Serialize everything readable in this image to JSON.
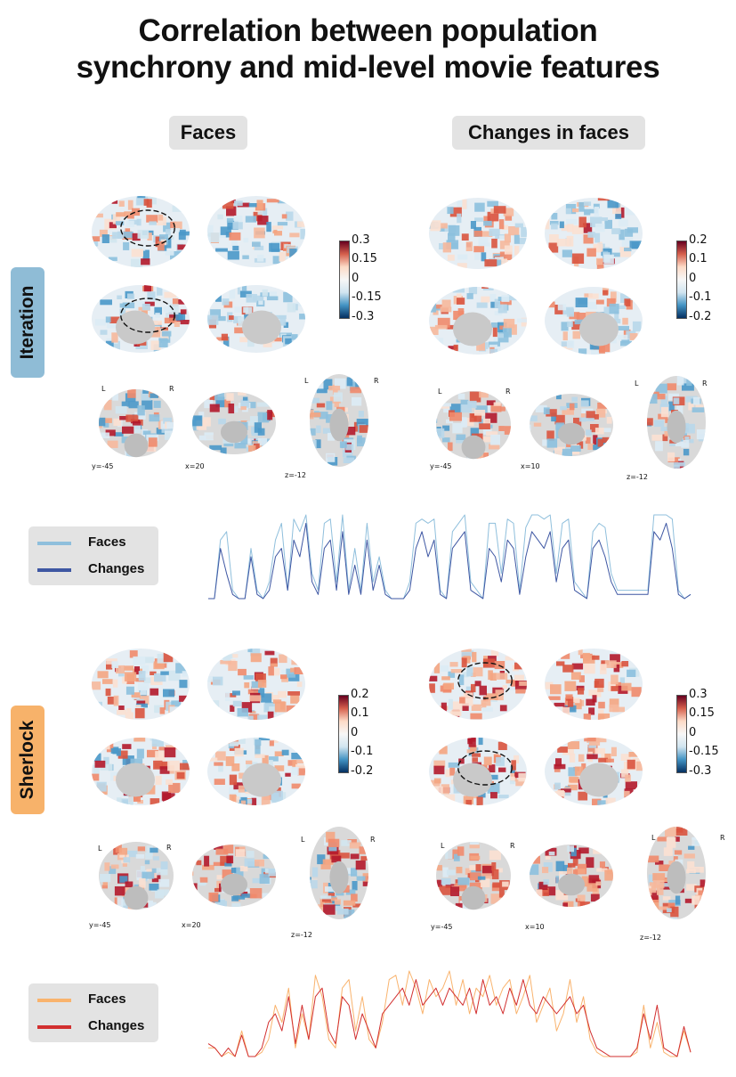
{
  "title": {
    "line1": "Correlation between population",
    "line2": "synchrony and mid-level movie features"
  },
  "columns": {
    "faces": "Faces",
    "changes": "Changes in faces"
  },
  "rows": {
    "iteration": {
      "label": "Iteration",
      "color": "#8fbcd6"
    },
    "sherlock": {
      "label": "Sherlock",
      "color": "#f7b26a"
    }
  },
  "panels": {
    "iteration_faces": {
      "colorbar_ticks": [
        "0.3",
        "0.15",
        "0",
        "-0.15",
        "-0.3"
      ],
      "slices": {
        "coronal": "y=-45",
        "sagittal": "x=20",
        "axial": "z=-12"
      }
    },
    "iteration_changes": {
      "colorbar_ticks": [
        "0.2",
        "0.1",
        "0",
        "-0.1",
        "-0.2"
      ],
      "slices": {
        "coronal": "y=-45",
        "sagittal": "x=10",
        "axial": "z=-12"
      }
    },
    "sherlock_faces": {
      "colorbar_ticks": [
        "0.2",
        "0.1",
        "0",
        "-0.1",
        "-0.2"
      ],
      "slices": {
        "coronal": "y=-45",
        "sagittal": "x=20",
        "axial": "z=-12"
      }
    },
    "sherlock_changes": {
      "colorbar_ticks": [
        "0.3",
        "0.15",
        "0",
        "-0.15",
        "-0.3"
      ],
      "slices": {
        "coronal": "y=-45",
        "sagittal": "x=10",
        "axial": "z=-12"
      }
    }
  },
  "orientation": {
    "left": "L",
    "right": "R"
  },
  "legends": {
    "iteration": [
      {
        "label": "Faces",
        "color": "#8fbfdc"
      },
      {
        "label": "Changes",
        "color": "#3e57a3"
      }
    ],
    "sherlock": [
      {
        "label": "Faces",
        "color": "#f9b36d"
      },
      {
        "label": "Changes",
        "color": "#d22f2f"
      }
    ]
  },
  "chart_data": [
    {
      "type": "line",
      "series": [
        {
          "name": "Faces",
          "values": [
            0,
            0,
            0.7,
            0.8,
            0.1,
            0,
            0,
            0.6,
            0.1,
            0,
            0.2,
            0.7,
            0.9,
            0.1,
            0.95,
            0.8,
            1,
            0.3,
            0.1,
            0.9,
            0.95,
            0.2,
            1,
            0.1,
            0.6,
            0.1,
            0.9,
            0.2,
            0.5,
            0.1,
            0,
            0,
            0,
            0.2,
            0.9,
            0.95,
            0.9,
            0.95,
            0.1,
            0,
            0.8,
            0.9,
            1,
            0.2,
            0.1,
            0,
            0.9,
            0.9,
            0.3,
            0.95,
            0.9,
            0.1,
            0.85,
            1,
            1,
            0.95,
            1,
            0.3,
            0.9,
            0.95,
            0.2,
            0.1,
            0,
            0.8,
            0.9,
            0.85,
            0.3,
            0.1,
            0.1,
            0.1,
            0.1,
            0.1,
            0.1,
            1,
            1,
            1,
            0.95,
            0.1,
            0,
            0.05
          ]
        },
        {
          "name": "Changes",
          "values": [
            0,
            0,
            0.6,
            0.3,
            0.05,
            0,
            0,
            0.5,
            0.05,
            0,
            0.1,
            0.5,
            0.6,
            0.1,
            0.7,
            0.5,
            0.9,
            0.2,
            0.05,
            0.6,
            0.7,
            0.1,
            0.8,
            0.05,
            0.4,
            0.05,
            0.7,
            0.1,
            0.4,
            0.05,
            0,
            0,
            0,
            0.1,
            0.6,
            0.8,
            0.5,
            0.7,
            0.05,
            0,
            0.6,
            0.7,
            0.8,
            0.1,
            0.05,
            0,
            0.6,
            0.5,
            0.2,
            0.7,
            0.6,
            0.05,
            0.5,
            0.8,
            0.7,
            0.6,
            0.8,
            0.2,
            0.6,
            0.7,
            0.1,
            0.05,
            0,
            0.6,
            0.7,
            0.5,
            0.2,
            0.05,
            0.05,
            0.05,
            0.05,
            0.05,
            0.05,
            0.8,
            0.7,
            0.9,
            0.6,
            0.05,
            0,
            0.05
          ]
        }
      ]
    },
    {
      "type": "line",
      "series": [
        {
          "name": "Faces",
          "values": [
            0.1,
            0.1,
            0,
            0.05,
            0,
            0.3,
            0,
            0,
            0.05,
            0.2,
            0.6,
            0.4,
            0.8,
            0.1,
            0.5,
            0.2,
            0.95,
            0.7,
            0.2,
            0.1,
            0.8,
            0.9,
            0.3,
            0.7,
            0.2,
            0.1,
            0.4,
            0.9,
            0.95,
            0.6,
            1,
            0.8,
            0.5,
            0.9,
            0.7,
            0.8,
            1,
            0.6,
            0.9,
            0.5,
            0.8,
            0.7,
            0.95,
            0.6,
            0.8,
            0.9,
            0.5,
            0.7,
            0.95,
            0.4,
            0.6,
            0.8,
            0.3,
            0.5,
            0.9,
            0.4,
            0.7,
            0.2,
            0.05,
            0,
            0,
            0,
            0,
            0,
            0.05,
            0.6,
            0.1,
            0.4,
            0.05,
            0,
            0,
            0.3,
            0.05
          ]
        },
        {
          "name": "Changes",
          "values": [
            0.15,
            0.1,
            0,
            0.1,
            0,
            0.25,
            0,
            0,
            0.1,
            0.4,
            0.5,
            0.3,
            0.7,
            0.15,
            0.6,
            0.2,
            0.7,
            0.8,
            0.3,
            0.15,
            0.7,
            0.6,
            0.2,
            0.5,
            0.3,
            0.1,
            0.5,
            0.6,
            0.7,
            0.8,
            0.6,
            0.9,
            0.6,
            0.7,
            0.8,
            0.6,
            0.8,
            0.7,
            0.6,
            0.8,
            0.5,
            0.9,
            0.6,
            0.7,
            0.5,
            0.8,
            0.6,
            0.9,
            0.6,
            0.5,
            0.7,
            0.6,
            0.5,
            0.6,
            0.7,
            0.5,
            0.6,
            0.3,
            0.1,
            0.05,
            0,
            0,
            0,
            0,
            0.1,
            0.5,
            0.2,
            0.6,
            0.1,
            0.05,
            0,
            0.35,
            0.05
          ]
        }
      ]
    }
  ]
}
